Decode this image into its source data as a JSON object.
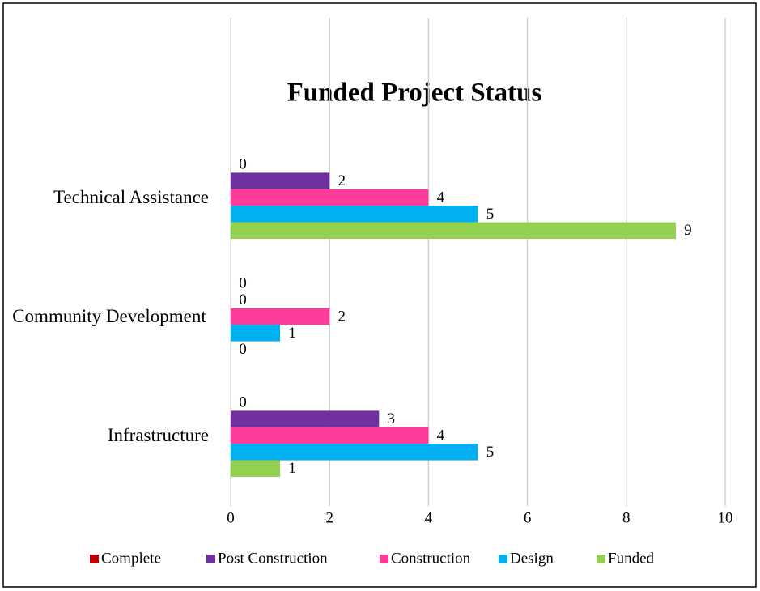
{
  "chart_data": {
    "type": "bar",
    "orientation": "horizontal",
    "title": "Funded Project Status",
    "categories": [
      "Infrastructure",
      "Community Development",
      "Technical Assistance"
    ],
    "series": [
      {
        "name": "Complete",
        "color": "#c00000",
        "values": [
          0,
          0,
          0
        ]
      },
      {
        "name": "Post Construction",
        "color": "#7030a0",
        "values": [
          3,
          0,
          2
        ]
      },
      {
        "name": "Construction",
        "color": "#ff3b9a",
        "values": [
          4,
          2,
          4
        ]
      },
      {
        "name": "Design",
        "color": "#00b0f0",
        "values": [
          5,
          1,
          5
        ]
      },
      {
        "name": "Funded",
        "color": "#92d050",
        "values": [
          1,
          0,
          9
        ]
      }
    ],
    "xlim": [
      0,
      10
    ],
    "xticks": [
      0,
      2,
      4,
      6,
      8,
      10
    ],
    "grid": true,
    "legend": "bottom"
  }
}
